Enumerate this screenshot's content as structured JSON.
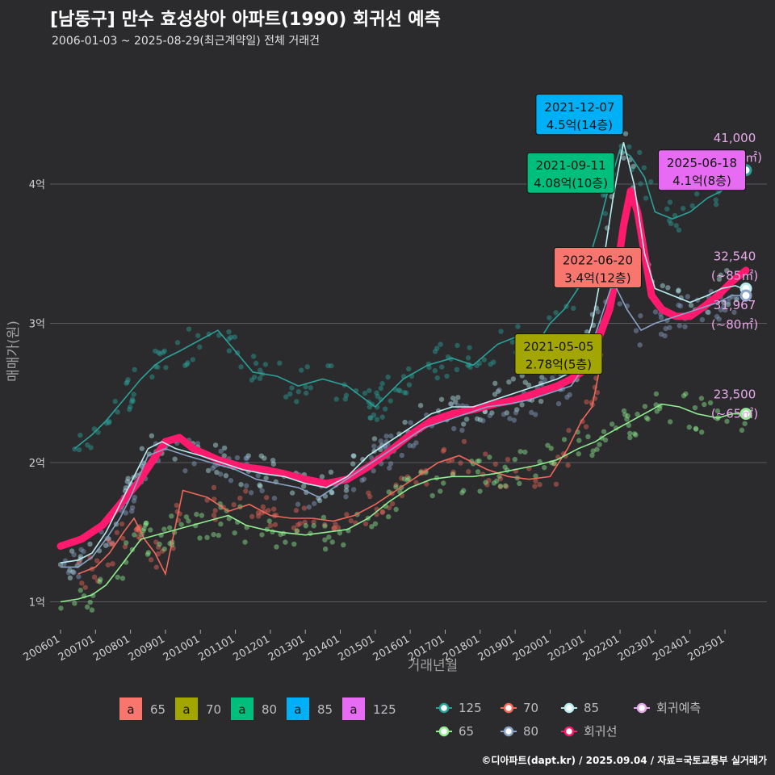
{
  "header": {
    "title": "[남동구] 만수 효성상아 아파트(1990) 회귀선 예측",
    "subtitle": "2006-01-03 ~ 2025-08-29(최근계약일) 전체 거래건"
  },
  "caption": "©디아파트(dapt.kr) / 2025.09.04 / 자료=국토교통부 실거래가",
  "colors": {
    "s65": "#90ee90",
    "s70": "#f0685a",
    "s80": "#8aa2c8",
    "s85": "#b8ecf0",
    "s125": "#2aa198",
    "reg": "#ff1a6e",
    "pred": "#e8a8e8",
    "box65": "#f8766d",
    "box70": "#a3a500",
    "box80": "#00bf7d",
    "box85": "#00b0f6",
    "box125": "#e76bf3"
  },
  "chart_data": {
    "type": "line",
    "xlabel": "거래년월",
    "ylabel": "매매가(원)",
    "x_ticks": [
      "200601",
      "200701",
      "200801",
      "200901",
      "201001",
      "201101",
      "201201",
      "201301",
      "201401",
      "201501",
      "201601",
      "201701",
      "201801",
      "201901",
      "202001",
      "202101",
      "202201",
      "202301",
      "202401",
      "202501"
    ],
    "y_ticks": [
      {
        "v": 1,
        "label": "1억"
      },
      {
        "v": 2,
        "label": "2억"
      },
      {
        "v": 3,
        "label": "3억"
      },
      {
        "v": 4,
        "label": "4억"
      }
    ],
    "xlim": [
      2005.7,
      2026.2
    ],
    "ylim": [
      0.8,
      4.8
    ],
    "series": [
      {
        "key": "s125",
        "name": "125",
        "points": [
          [
            2006.4,
            2.1
          ],
          [
            2006.9,
            2.2
          ],
          [
            2007.3,
            2.3
          ],
          [
            2007.8,
            2.45
          ],
          [
            2008.3,
            2.6
          ],
          [
            2008.7,
            2.7
          ],
          [
            2009.0,
            2.75
          ],
          [
            2009.4,
            2.8
          ],
          [
            2010.5,
            2.95
          ],
          [
            2011.5,
            2.65
          ],
          [
            2012.2,
            2.62
          ],
          [
            2012.8,
            2.55
          ],
          [
            2013.5,
            2.6
          ],
          [
            2014.2,
            2.55
          ],
          [
            2015.0,
            2.4
          ],
          [
            2015.8,
            2.6
          ],
          [
            2016.5,
            2.7
          ],
          [
            2017.2,
            2.75
          ],
          [
            2017.8,
            2.7
          ],
          [
            2018.5,
            2.85
          ],
          [
            2019.0,
            2.9
          ],
          [
            2019.5,
            2.8
          ],
          [
            2020.0,
            3.0
          ],
          [
            2020.4,
            3.1
          ],
          [
            2020.8,
            3.25
          ],
          [
            2021.1,
            3.45
          ],
          [
            2021.4,
            3.7
          ],
          [
            2021.7,
            4.0
          ],
          [
            2022.0,
            4.25
          ],
          [
            2022.3,
            4.2
          ],
          [
            2022.7,
            4.05
          ],
          [
            2023.0,
            3.8
          ],
          [
            2023.5,
            3.75
          ],
          [
            2024.0,
            3.8
          ],
          [
            2024.5,
            3.9
          ],
          [
            2024.9,
            3.95
          ],
          [
            2025.3,
            4.05
          ],
          [
            2025.6,
            4.1
          ]
        ]
      },
      {
        "key": "s85",
        "name": "85",
        "points": [
          [
            2006.0,
            1.28
          ],
          [
            2006.5,
            1.3
          ],
          [
            2006.9,
            1.35
          ],
          [
            2007.3,
            1.5
          ],
          [
            2007.7,
            1.7
          ],
          [
            2008.0,
            1.85
          ],
          [
            2008.5,
            2.1
          ],
          [
            2008.9,
            2.15
          ],
          [
            2009.3,
            2.1
          ],
          [
            2010.0,
            2.05
          ],
          [
            2010.6,
            2.0
          ],
          [
            2011.2,
            1.95
          ],
          [
            2011.8,
            1.92
          ],
          [
            2012.4,
            1.9
          ],
          [
            2013.0,
            1.85
          ],
          [
            2013.6,
            1.82
          ],
          [
            2014.2,
            1.9
          ],
          [
            2014.8,
            2.05
          ],
          [
            2015.4,
            2.15
          ],
          [
            2016.0,
            2.25
          ],
          [
            2016.6,
            2.35
          ],
          [
            2017.2,
            2.4
          ],
          [
            2017.8,
            2.4
          ],
          [
            2018.4,
            2.45
          ],
          [
            2019.0,
            2.5
          ],
          [
            2019.6,
            2.55
          ],
          [
            2020.2,
            2.6
          ],
          [
            2020.6,
            2.65
          ],
          [
            2020.9,
            2.75
          ],
          [
            2021.2,
            3.0
          ],
          [
            2021.5,
            3.4
          ],
          [
            2021.8,
            3.9
          ],
          [
            2022.1,
            4.3
          ],
          [
            2022.4,
            4.0
          ],
          [
            2022.7,
            3.5
          ],
          [
            2023.0,
            3.25
          ],
          [
            2023.5,
            3.2
          ],
          [
            2024.0,
            3.15
          ],
          [
            2024.5,
            3.2
          ],
          [
            2024.9,
            3.25
          ],
          [
            2025.3,
            3.27
          ],
          [
            2025.5,
            3.25
          ]
        ]
      },
      {
        "key": "s80",
        "name": "80",
        "points": [
          [
            2006.0,
            1.25
          ],
          [
            2006.5,
            1.25
          ],
          [
            2006.9,
            1.32
          ],
          [
            2007.3,
            1.45
          ],
          [
            2007.7,
            1.6
          ],
          [
            2008.0,
            1.75
          ],
          [
            2008.5,
            2.05
          ],
          [
            2009.0,
            2.1
          ],
          [
            2009.6,
            2.05
          ],
          [
            2010.3,
            2.0
          ],
          [
            2011.0,
            1.95
          ],
          [
            2011.6,
            1.88
          ],
          [
            2012.2,
            1.85
          ],
          [
            2012.8,
            1.82
          ],
          [
            2013.4,
            1.75
          ],
          [
            2014.0,
            1.85
          ],
          [
            2014.6,
            1.95
          ],
          [
            2015.2,
            2.05
          ],
          [
            2015.8,
            2.15
          ],
          [
            2016.4,
            2.25
          ],
          [
            2017.0,
            2.3
          ],
          [
            2017.6,
            2.35
          ],
          [
            2018.2,
            2.4
          ],
          [
            2018.8,
            2.42
          ],
          [
            2019.4,
            2.45
          ],
          [
            2020.0,
            2.5
          ],
          [
            2020.6,
            2.55
          ],
          [
            2021.0,
            2.7
          ],
          [
            2021.4,
            3.0
          ],
          [
            2021.8,
            3.3
          ],
          [
            2022.2,
            3.1
          ],
          [
            2022.6,
            2.95
          ],
          [
            2023.0,
            3.0
          ],
          [
            2023.6,
            3.05
          ],
          [
            2024.2,
            3.1
          ],
          [
            2024.8,
            3.15
          ],
          [
            2025.2,
            3.2
          ],
          [
            2025.5,
            3.2
          ]
        ]
      },
      {
        "key": "s70",
        "name": "70",
        "points": [
          [
            2006.5,
            1.2
          ],
          [
            2007.0,
            1.25
          ],
          [
            2007.4,
            1.35
          ],
          [
            2007.8,
            1.5
          ],
          [
            2008.1,
            1.6
          ],
          [
            2008.4,
            1.45
          ],
          [
            2008.7,
            1.35
          ],
          [
            2009.0,
            1.2
          ],
          [
            2009.5,
            1.8
          ],
          [
            2010.2,
            1.75
          ],
          [
            2010.8,
            1.65
          ],
          [
            2011.4,
            1.7
          ],
          [
            2012.0,
            1.62
          ],
          [
            2012.6,
            1.6
          ],
          [
            2013.2,
            1.6
          ],
          [
            2013.8,
            1.58
          ],
          [
            2014.4,
            1.62
          ],
          [
            2015.0,
            1.7
          ],
          [
            2015.6,
            1.8
          ],
          [
            2016.2,
            1.9
          ],
          [
            2016.8,
            2.0
          ],
          [
            2017.4,
            2.05
          ],
          [
            2017.8,
            2.0
          ],
          [
            2018.2,
            1.95
          ],
          [
            2018.8,
            1.9
          ],
          [
            2019.4,
            1.88
          ],
          [
            2020.0,
            1.9
          ],
          [
            2020.5,
            2.1
          ],
          [
            2020.9,
            2.3
          ],
          [
            2021.2,
            2.4
          ],
          [
            2021.5,
            2.78
          ]
        ]
      },
      {
        "key": "s65",
        "name": "65",
        "points": [
          [
            2006.0,
            1.0
          ],
          [
            2006.5,
            1.02
          ],
          [
            2006.9,
            1.05
          ],
          [
            2007.3,
            1.12
          ],
          [
            2007.7,
            1.25
          ],
          [
            2008.0,
            1.35
          ],
          [
            2008.3,
            1.45
          ],
          [
            2010.8,
            1.62
          ],
          [
            2011.3,
            1.55
          ],
          [
            2011.8,
            1.52
          ],
          [
            2012.3,
            1.5
          ],
          [
            2013.0,
            1.48
          ],
          [
            2013.6,
            1.5
          ],
          [
            2014.2,
            1.52
          ],
          [
            2014.8,
            1.6
          ],
          [
            2015.4,
            1.72
          ],
          [
            2016.0,
            1.82
          ],
          [
            2016.6,
            1.88
          ],
          [
            2017.2,
            1.9
          ],
          [
            2017.8,
            1.9
          ],
          [
            2018.4,
            1.92
          ],
          [
            2019.0,
            1.95
          ],
          [
            2019.6,
            1.98
          ],
          [
            2020.2,
            2.02
          ],
          [
            2020.8,
            2.1
          ],
          [
            2021.3,
            2.15
          ],
          [
            2021.6,
            2.2
          ],
          [
            2023.2,
            2.42
          ],
          [
            2023.7,
            2.4
          ],
          [
            2024.2,
            2.35
          ],
          [
            2024.8,
            2.32
          ],
          [
            2025.2,
            2.35
          ],
          [
            2025.6,
            2.35
          ]
        ]
      }
    ],
    "regression": {
      "key": "reg",
      "name": "회귀선",
      "points": [
        [
          2006.0,
          1.4
        ],
        [
          2006.6,
          1.45
        ],
        [
          2007.2,
          1.55
        ],
        [
          2007.7,
          1.7
        ],
        [
          2008.2,
          1.85
        ],
        [
          2008.6,
          2.0
        ],
        [
          2009.0,
          2.15
        ],
        [
          2009.4,
          2.18
        ],
        [
          2009.8,
          2.1
        ],
        [
          2010.5,
          2.02
        ],
        [
          2011.2,
          1.97
        ],
        [
          2011.8,
          1.95
        ],
        [
          2012.4,
          1.92
        ],
        [
          2013.0,
          1.88
        ],
        [
          2013.6,
          1.85
        ],
        [
          2014.2,
          1.88
        ],
        [
          2014.8,
          1.97
        ],
        [
          2015.4,
          2.08
        ],
        [
          2016.0,
          2.2
        ],
        [
          2016.6,
          2.3
        ],
        [
          2017.2,
          2.35
        ],
        [
          2017.8,
          2.38
        ],
        [
          2018.4,
          2.42
        ],
        [
          2019.0,
          2.45
        ],
        [
          2019.6,
          2.5
        ],
        [
          2020.2,
          2.55
        ],
        [
          2020.6,
          2.6
        ],
        [
          2020.9,
          2.65
        ],
        [
          2021.1,
          2.75
        ],
        [
          2021.4,
          2.9
        ],
        [
          2021.7,
          3.1
        ],
        [
          2021.9,
          3.35
        ],
        [
          2022.1,
          3.7
        ],
        [
          2022.3,
          3.95
        ],
        [
          2022.5,
          3.8
        ],
        [
          2022.7,
          3.5
        ],
        [
          2022.9,
          3.2
        ],
        [
          2023.2,
          3.1
        ],
        [
          2023.6,
          3.05
        ],
        [
          2024.0,
          3.05
        ],
        [
          2024.4,
          3.12
        ],
        [
          2024.8,
          3.2
        ],
        [
          2025.2,
          3.3
        ],
        [
          2025.6,
          3.38
        ]
      ]
    },
    "end_labels": [
      {
        "key": "s125",
        "x": 2025.6,
        "y": 4.1,
        "value": "41,000",
        "area": "(~125㎡)",
        "ly": 4.22
      },
      {
        "key": "s85",
        "x": 2025.6,
        "y": 3.25,
        "value": "32,540",
        "area": "(~85㎡)",
        "ly": 3.37
      },
      {
        "key": "s80",
        "x": 2025.6,
        "y": 3.2,
        "value": "31,967",
        "area": "(~80㎡)",
        "ly": 3.02
      },
      {
        "key": "s65",
        "x": 2025.6,
        "y": 2.35,
        "value": "23,500",
        "area": "(~65㎡)",
        "ly": 2.38
      }
    ],
    "annotations": [
      {
        "box": "box85",
        "date": "2021-12-07",
        "price": "4.5억(14층)",
        "x": 2021.95,
        "y": 4.5
      },
      {
        "box": "box80",
        "date": "2021-09-11",
        "price": "4.08억(10층)",
        "x": 2021.7,
        "y": 4.08
      },
      {
        "box": "box125",
        "date": "2025-06-18",
        "price": "4.1억(8층)",
        "x": 2025.45,
        "y": 4.1
      },
      {
        "box": "box65",
        "date": "2022-06-20",
        "price": "3.4억(12층)",
        "x": 2022.47,
        "y": 3.4
      },
      {
        "box": "box70",
        "date": "2021-05-05",
        "price": "2.78억(5층)",
        "x": 2021.35,
        "y": 2.78
      }
    ],
    "legend_boxes": [
      {
        "color": "box65",
        "glyph": "a",
        "label": "65"
      },
      {
        "color": "box70",
        "glyph": "a",
        "label": "70"
      },
      {
        "color": "box80",
        "glyph": "a",
        "label": "80"
      },
      {
        "color": "box85",
        "glyph": "a",
        "label": "85"
      },
      {
        "color": "box125",
        "glyph": "a",
        "label": "125"
      }
    ],
    "legend_lines": [
      {
        "key": "s125",
        "label": "125"
      },
      {
        "key": "s70",
        "label": "70"
      },
      {
        "key": "s85",
        "label": "85"
      },
      {
        "key": "pred",
        "label": "회귀예측"
      },
      {
        "key": "s65",
        "label": "65"
      },
      {
        "key": "s80",
        "label": "80"
      },
      {
        "key": "reg",
        "label": "회귀선"
      }
    ]
  }
}
